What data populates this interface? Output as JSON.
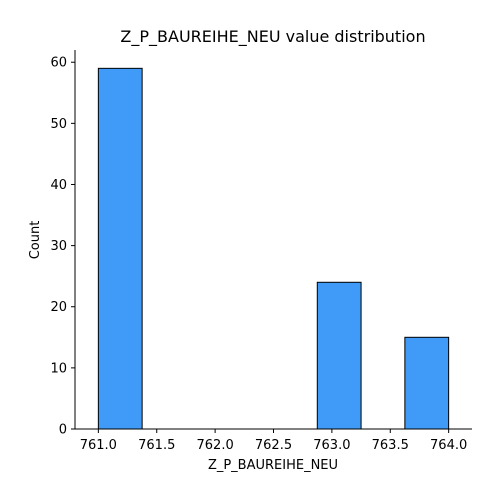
{
  "chart_data": {
    "type": "bar",
    "title": "Z_P_BAUREIHE_NEU value distribution",
    "xlabel": "Z_P_BAUREIHE_NEU",
    "ylabel": "Count",
    "xlim": [
      760.8,
      764.2
    ],
    "ylim": [
      0,
      62
    ],
    "xticks": [
      761.0,
      761.5,
      762.0,
      762.5,
      763.0,
      763.5,
      764.0
    ],
    "xtick_labels": [
      "761.0",
      "761.5",
      "762.0",
      "762.5",
      "763.0",
      "763.5",
      "764.0"
    ],
    "yticks": [
      0,
      10,
      20,
      30,
      40,
      50,
      60
    ],
    "ytick_labels": [
      "0",
      "10",
      "20",
      "30",
      "40",
      "50",
      "60"
    ],
    "bins": [
      {
        "x0": 761.0,
        "x1": 761.375,
        "count": 59
      },
      {
        "x0": 761.375,
        "x1": 761.75,
        "count": 0
      },
      {
        "x0": 761.75,
        "x1": 762.125,
        "count": 0
      },
      {
        "x0": 762.125,
        "x1": 762.5,
        "count": 0
      },
      {
        "x0": 762.5,
        "x1": 762.875,
        "count": 0
      },
      {
        "x0": 762.875,
        "x1": 763.25,
        "count": 24
      },
      {
        "x0": 763.25,
        "x1": 763.625,
        "count": 0
      },
      {
        "x0": 763.625,
        "x1": 764.0,
        "count": 15
      }
    ],
    "colors": {
      "bar_fill": "#3f9bf7",
      "bar_edge": "#000000",
      "axis": "#000000"
    },
    "grid": false,
    "spines": [
      "left",
      "bottom"
    ]
  }
}
